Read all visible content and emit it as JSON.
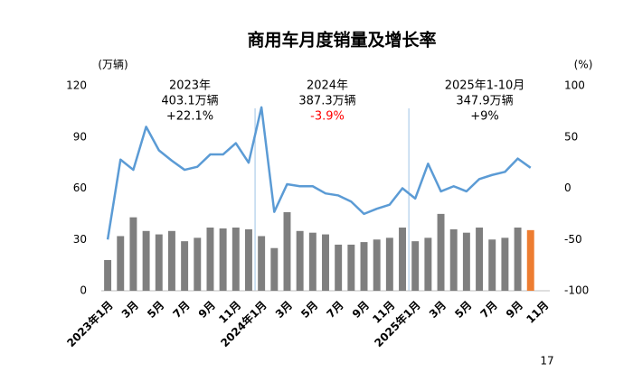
{
  "chart_data": {
    "type": "bar-line",
    "title": "商用车月度销量及增长率",
    "y_label": "(万辆)",
    "y2_label": "(%)",
    "categories": [
      "2023年1月",
      null,
      "3月",
      null,
      "5月",
      null,
      "7月",
      null,
      "9月",
      null,
      "11月",
      null,
      "2024年1月",
      null,
      "3月",
      null,
      "5月",
      null,
      "7月",
      null,
      "9月",
      null,
      "11月",
      null,
      "2025年1月",
      null,
      "3月",
      null,
      "5月",
      null,
      "7月",
      null,
      "9月",
      null,
      "11月"
    ],
    "ylim": [
      0,
      120
    ],
    "yticks": [
      0,
      30,
      60,
      90,
      120
    ],
    "y2lim": [
      -100,
      100
    ],
    "y2ticks": [
      -100,
      -50,
      0,
      50,
      100
    ],
    "series": [
      {
        "type": "bar",
        "color": "#7f7f7f",
        "colors": [
          "#7f7f7f",
          "#7f7f7f",
          "#7f7f7f",
          "#7f7f7f",
          "#7f7f7f",
          "#7f7f7f",
          "#7f7f7f",
          "#7f7f7f",
          "#7f7f7f",
          "#7f7f7f",
          "#7f7f7f",
          "#7f7f7f",
          "#7f7f7f",
          "#7f7f7f",
          "#7f7f7f",
          "#7f7f7f",
          "#7f7f7f",
          "#7f7f7f",
          "#7f7f7f",
          "#7f7f7f",
          "#7f7f7f",
          "#7f7f7f",
          "#7f7f7f",
          "#7f7f7f",
          "#7f7f7f",
          "#7f7f7f",
          "#7f7f7f",
          "#7f7f7f",
          "#7f7f7f",
          "#7f7f7f",
          "#7f7f7f",
          "#7f7f7f",
          "#7f7f7f",
          "#ed7d31",
          null
        ],
        "values": [
          18,
          32,
          43,
          35,
          33,
          35,
          29,
          31,
          37,
          36.5,
          37,
          36,
          32,
          25,
          46,
          35,
          34,
          33,
          27,
          27,
          28.5,
          30,
          31,
          37,
          29,
          31,
          45,
          36,
          34,
          37,
          30,
          31,
          37,
          35.5,
          null
        ]
      },
      {
        "type": "line",
        "axis": "y2",
        "color": "#5b9bd5",
        "values": [
          -50,
          28,
          18,
          60,
          37,
          27,
          18,
          21,
          33,
          33,
          44,
          25,
          79,
          -23,
          4,
          2,
          2,
          -5,
          -7,
          -13,
          -25,
          -20,
          -16,
          0,
          -10,
          24,
          -3,
          2,
          -3,
          9,
          13,
          16,
          29,
          20,
          null
        ]
      }
    ],
    "annotations": [
      {
        "year": "2023年",
        "total": "403.1万辆",
        "growth": "+22.1%",
        "growth_color": "#000000"
      },
      {
        "year": "2024年",
        "total": "387.3万辆",
        "growth": "-3.9%",
        "growth_color": "#ff0000"
      },
      {
        "year": "2025年1-10月",
        "total": "347.9万辆",
        "growth": "+9%",
        "growth_color": "#000000"
      }
    ],
    "page_number": "17"
  }
}
